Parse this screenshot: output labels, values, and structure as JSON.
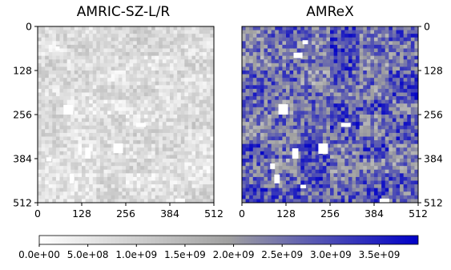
{
  "chart_data": [
    {
      "type": "heatmap",
      "title": "AMRIC-SZ-L/R",
      "xlim": [
        0,
        512
      ],
      "ylim": [
        0,
        512
      ],
      "x_ticks": [
        "0",
        "128",
        "256",
        "384",
        "512"
      ],
      "y_ticks": [
        "0",
        "128",
        "256",
        "384",
        "512"
      ],
      "y_axis_side": "left",
      "intensity_range": [
        0.0,
        0.35
      ],
      "white_patches": [
        {
          "x": [
            52,
            64
          ],
          "y": [
            58,
            70
          ]
        },
        {
          "x": [
            75,
            103
          ],
          "y": [
            228,
            256
          ]
        },
        {
          "x": [
            286,
            314
          ],
          "y": [
            280,
            292
          ]
        },
        {
          "x": [
            220,
            248
          ],
          "y": [
            340,
            368
          ]
        },
        {
          "x": [
            138,
            154
          ],
          "y": [
            352,
            384
          ]
        },
        {
          "x": [
            25,
            40
          ],
          "y": [
            380,
            392
          ]
        },
        {
          "x": [
            93,
            105
          ],
          "y": [
            428,
            456
          ]
        },
        {
          "x": [
            400,
            428
          ],
          "y": [
            500,
            512
          ]
        }
      ]
    },
    {
      "type": "heatmap",
      "title": "AMReX",
      "xlim": [
        0,
        512
      ],
      "ylim": [
        0,
        512
      ],
      "x_ticks": [
        "0",
        "128",
        "256",
        "384",
        "512"
      ],
      "y_ticks": [
        "0",
        "128",
        "256",
        "384",
        "512"
      ],
      "y_axis_side": "right",
      "intensity_range": [
        0.3,
        1.0
      ],
      "white_patches": [
        {
          "x": [
            176,
            192
          ],
          "y": [
            40,
            52
          ]
        },
        {
          "x": [
            150,
            176
          ],
          "y": [
            76,
            92
          ]
        },
        {
          "x": [
            106,
            134
          ],
          "y": [
            226,
            256
          ]
        },
        {
          "x": [
            288,
            316
          ],
          "y": [
            280,
            292
          ]
        },
        {
          "x": [
            222,
            250
          ],
          "y": [
            340,
            370
          ]
        },
        {
          "x": [
            146,
            164
          ],
          "y": [
            354,
            384
          ]
        },
        {
          "x": [
            82,
            96
          ],
          "y": [
            398,
            414
          ]
        },
        {
          "x": [
            94,
            110
          ],
          "y": [
            430,
            456
          ]
        },
        {
          "x": [
            170,
            186
          ],
          "y": [
            460,
            470
          ]
        },
        {
          "x": [
            400,
            428
          ],
          "y": [
            500,
            512
          ]
        }
      ]
    }
  ],
  "colorbar": {
    "ticks": [
      "0.0e+00",
      "5.0e+08",
      "1.0e+09",
      "1.5e+09",
      "2.0e+09",
      "2.5e+09",
      "3.0e+09",
      "3.5e+09"
    ],
    "tick_values": [
      0,
      500000000,
      1000000000,
      1500000000,
      2000000000,
      2500000000,
      3000000000,
      3500000000
    ],
    "range": [
      0,
      3900000000
    ],
    "colors": [
      "#ffffff",
      "#a0a0a0",
      "#0000c8"
    ]
  }
}
